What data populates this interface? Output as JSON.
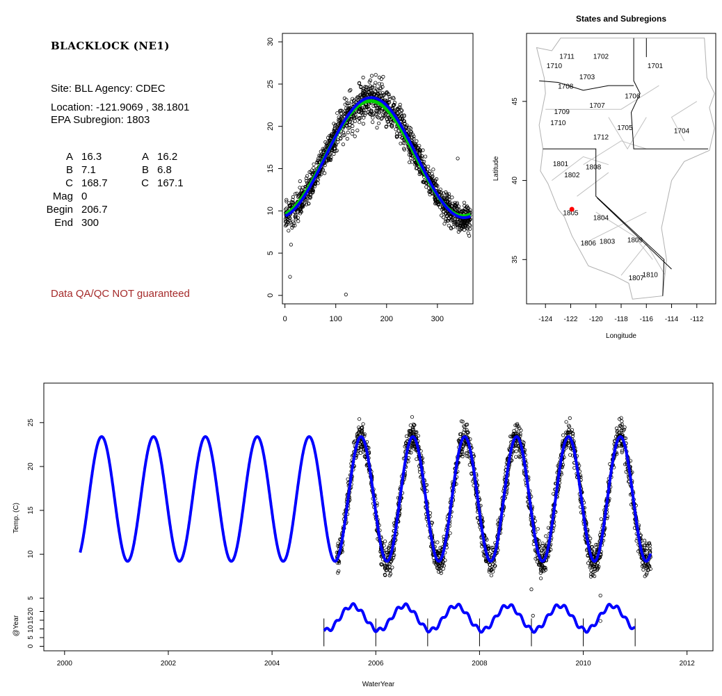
{
  "info": {
    "site_name": "BLACKLOCK (NE1)",
    "site_line": "Site: BLL     Agency: CDEC",
    "location": "Location: -121.9069 , 38.1801",
    "subregion": "EPA Subregion: 1803",
    "params_left": [
      {
        "label": "A",
        "value": "16.3"
      },
      {
        "label": "B",
        "value": "7.1"
      },
      {
        "label": "C",
        "value": "168.7"
      },
      {
        "label": "Mag",
        "value": "0"
      },
      {
        "label": "Begin",
        "value": "206.7"
      },
      {
        "label": "End",
        "value": "300"
      }
    ],
    "params_right": [
      {
        "label": "A",
        "value": "16.2"
      },
      {
        "label": "B",
        "value": "6.8"
      },
      {
        "label": "C",
        "value": "167.1"
      }
    ],
    "disclaimer": "Data QA/QC NOT guaranteed",
    "disclaimer_color": "#a52a2a"
  },
  "chart_data": [
    {
      "id": "doy",
      "type": "scatter",
      "title": "",
      "xlabel": "",
      "ylabel": "",
      "xlim": [
        -5,
        370
      ],
      "ylim": [
        -1,
        31
      ],
      "xticks": [
        "0",
        "100",
        "200",
        "300"
      ],
      "yticks": [
        "0",
        "5",
        "10",
        "15",
        "20",
        "25",
        "30"
      ],
      "series": [
        {
          "style": "points",
          "color": "#000000",
          "model": {
            "A": 16.3,
            "B": 7.1,
            "C": 168.7
          }
        },
        {
          "style": "line",
          "color": "#00cc00",
          "model": {
            "A": 16.2,
            "B": 6.8,
            "C": 167.1
          }
        },
        {
          "style": "line",
          "color": "#0000ff",
          "model": {
            "A": 16.3,
            "B": 7.1,
            "C": 168.7
          }
        }
      ],
      "outliers": [
        [
          10,
          2.2
        ],
        [
          12,
          6
        ],
        [
          120,
          0.1
        ],
        [
          150,
          22
        ],
        [
          340,
          16.2
        ]
      ]
    },
    {
      "id": "map",
      "type": "map",
      "title": "States and Subregions",
      "xlabel": "Longitude",
      "ylabel": "Latitude",
      "xlim": [
        -125.5,
        -110.5
      ],
      "ylim": [
        32.2,
        49.3
      ],
      "xticks": [
        "-124",
        "-122",
        "-120",
        "-118",
        "-116",
        "-114",
        "-112"
      ],
      "yticks": [
        "35",
        "40",
        "45"
      ],
      "region_labels": [
        {
          "text": "1702",
          "lon": -119.6,
          "lat": 47.7
        },
        {
          "text": "1701",
          "lon": -115.3,
          "lat": 47.1
        },
        {
          "text": "1711",
          "lon": -122.3,
          "lat": 47.7
        },
        {
          "text": "1710",
          "lon": -123.3,
          "lat": 47.1
        },
        {
          "text": "1703",
          "lon": -120.7,
          "lat": 46.4
        },
        {
          "text": "1708",
          "lon": -122.4,
          "lat": 45.8
        },
        {
          "text": "1706",
          "lon": -117.1,
          "lat": 45.2
        },
        {
          "text": "1707",
          "lon": -119.9,
          "lat": 44.6
        },
        {
          "text": "1709",
          "lon": -122.7,
          "lat": 44.2
        },
        {
          "text": "1710",
          "lon": -123.0,
          "lat": 43.5
        },
        {
          "text": "1705",
          "lon": -117.7,
          "lat": 43.2
        },
        {
          "text": "1704",
          "lon": -113.2,
          "lat": 43.0
        },
        {
          "text": "1712",
          "lon": -119.6,
          "lat": 42.6
        },
        {
          "text": "1801",
          "lon": -122.8,
          "lat": 40.9
        },
        {
          "text": "1808",
          "lon": -120.2,
          "lat": 40.7
        },
        {
          "text": "1802",
          "lon": -121.9,
          "lat": 40.2
        },
        {
          "text": "1805",
          "lon": -122.0,
          "lat": 37.8
        },
        {
          "text": "1804",
          "lon": -119.6,
          "lat": 37.5
        },
        {
          "text": "1806",
          "lon": -120.6,
          "lat": 35.9
        },
        {
          "text": "1803",
          "lon": -119.1,
          "lat": 36.0
        },
        {
          "text": "1809",
          "lon": -116.9,
          "lat": 36.1
        },
        {
          "text": "1810",
          "lon": -115.7,
          "lat": 33.9
        },
        {
          "text": "1807",
          "lon": -116.8,
          "lat": 33.7
        }
      ],
      "site_point": {
        "lon": -121.9069,
        "lat": 38.1801,
        "color": "#ff0000"
      }
    },
    {
      "id": "timeseries",
      "type": "line",
      "title": "",
      "xlabel": "WaterYear",
      "ylabel": "Temp. (C)",
      "xlim": [
        1999.6,
        2012.5
      ],
      "ylim": [
        -1,
        29.5
      ],
      "xticks": [
        "2000",
        "2002",
        "2004",
        "2006",
        "2008",
        "2010",
        "2012"
      ],
      "yticks": [
        "5",
        "10",
        "15",
        "20",
        "25"
      ],
      "model_line": {
        "color": "#0000ff",
        "start": 2000.3,
        "end": 2011.3,
        "A": 16.3,
        "B": 7.1,
        "C": 168.7
      },
      "observed_points": {
        "start": 2005.25,
        "end": 2011.3,
        "color": "#000000"
      },
      "outliers": [
        [
          2009.0,
          6.0
        ],
        [
          2009.03,
          3.0
        ],
        [
          2010.33,
          5.3
        ],
        [
          2010.33,
          2.4
        ],
        [
          2005.25,
          10.2
        ]
      ]
    },
    {
      "id": "annual",
      "type": "line",
      "ylabel": "@Year",
      "yticks": [
        "0",
        "5",
        "10",
        "15",
        "20"
      ],
      "ylim": [
        -1,
        25
      ],
      "x_range": [
        2005.0,
        2011.0
      ],
      "year_breaks": [
        2005,
        2006,
        2007,
        2008,
        2009,
        2010,
        2011
      ],
      "color": "#0000ff"
    }
  ]
}
